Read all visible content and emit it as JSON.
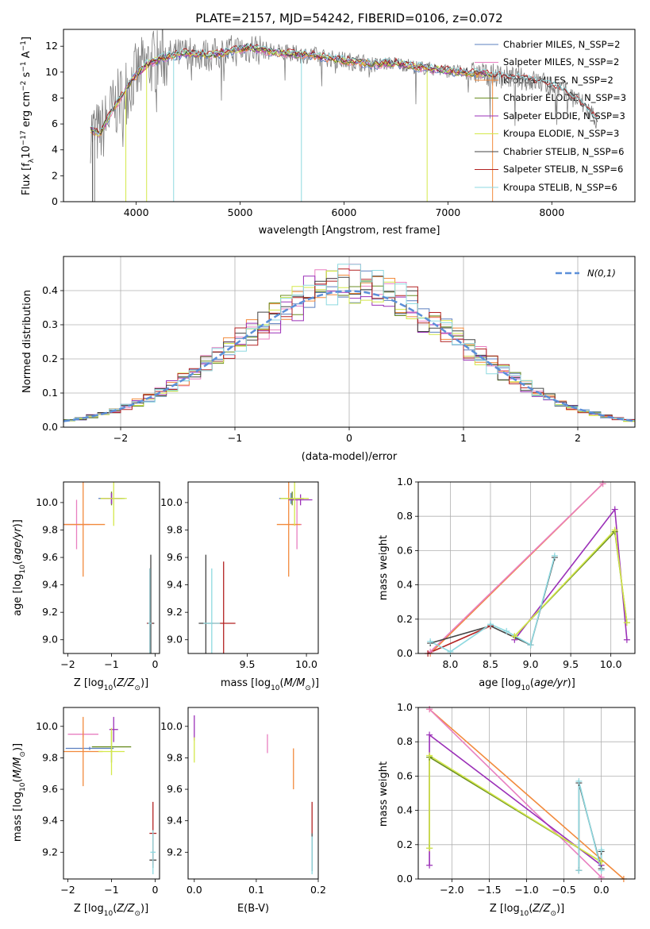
{
  "chart_data": [
    {
      "id": "spectrum",
      "type": "line",
      "title": "PLATE=2157, MJD=54242, FIBERID=0106, z=0.072",
      "xlabel": "wavelength [Angstrom, rest frame]",
      "ylabel": "Flux [f_λ10^-17 erg cm^-2 s^-1 A^-1]",
      "xlim": [
        3300,
        8800
      ],
      "ylim": [
        0,
        13.3
      ],
      "xticks": [
        4000,
        5000,
        6000,
        7000,
        8000
      ],
      "yticks": [
        0,
        2,
        4,
        6,
        8,
        10,
        12
      ],
      "grid": false,
      "legend_position": "upper right",
      "data_continuum": {
        "x": [
          3550,
          3650,
          3750,
          3850,
          3950,
          4100,
          4300,
          4500,
          4700,
          4900,
          5100,
          5300,
          5500,
          5700,
          5900,
          6100,
          6300,
          6500,
          6700,
          6900,
          7100,
          7300,
          7500,
          7700,
          7900,
          8100,
          8300,
          8450
        ],
        "y": [
          5.6,
          5.2,
          6.8,
          8.0,
          9.3,
          10.6,
          11.2,
          11.5,
          11.3,
          11.6,
          11.9,
          11.6,
          11.4,
          11.3,
          11.0,
          10.8,
          10.6,
          10.7,
          10.4,
          10.2,
          10.0,
          9.9,
          9.7,
          9.5,
          9.2,
          8.6,
          7.5,
          6.2
        ]
      },
      "series": [
        {
          "name": "Chabrier MILES, N_SSP=2",
          "color": "#5b7fbf"
        },
        {
          "name": "Salpeter MILES, N_SSP=2",
          "color": "#e87fc0"
        },
        {
          "name": "Kroupa MILES, N_SSP=2",
          "color": "#f28a3c"
        },
        {
          "name": "Chabrier ELODIE, N_SSP=3",
          "color": "#6b8e23"
        },
        {
          "name": "Salpeter ELODIE, N_SSP=3",
          "color": "#9b30b8"
        },
        {
          "name": "Kroupa ELODIE, N_SSP=3",
          "color": "#d4e84a"
        },
        {
          "name": "Chabrier STELIB, N_SSP=6",
          "color": "#444444"
        },
        {
          "name": "Salpeter STELIB, N_SSP=6",
          "color": "#b22222"
        },
        {
          "name": "Kroupa STELIB, N_SSP=6",
          "color": "#8ed9e0"
        }
      ]
    },
    {
      "id": "residuals",
      "type": "line",
      "xlabel": "(data-model)/error",
      "ylabel": "Normed distribution",
      "xlim": [
        -2.5,
        2.5
      ],
      "ylim": [
        0,
        0.5
      ],
      "xticks": [
        -2,
        -1,
        0,
        1,
        2
      ],
      "yticks": [
        0.0,
        0.1,
        0.2,
        0.3,
        0.4
      ],
      "grid": true,
      "legend_position": "upper right",
      "gaussian_label": "N(0,1)",
      "gaussian_color": "#5b8fd9",
      "histogram_bins": [
        -2.5,
        2.5,
        0.1
      ]
    },
    {
      "id": "age-vs-Z",
      "type": "scatter",
      "xlabel": "Z [log10(Z/Z⊙)]",
      "ylabel": "age [log10(age/yr)]",
      "xlim": [
        -2.1,
        0.1
      ],
      "ylim": [
        8.9,
        10.15
      ],
      "xticks": [
        -2,
        -1,
        0
      ],
      "yticks": [
        9.0,
        9.2,
        9.4,
        9.6,
        9.8,
        10.0
      ],
      "points": [
        {
          "c": "#5b7fbf",
          "x": -1.0,
          "y": 10.03,
          "xe": 0.3,
          "ye": 0.04
        },
        {
          "c": "#e87fc0",
          "x": -1.8,
          "y": 9.84,
          "xe": 0.3,
          "ye": 0.18
        },
        {
          "c": "#f28a3c",
          "x": -1.65,
          "y": 9.84,
          "xe": 0.5,
          "ye": 0.38
        },
        {
          "c": "#6b8e23",
          "x": -1.0,
          "y": 10.03,
          "xe": 0.25,
          "ye": 0.05
        },
        {
          "c": "#9b30b8",
          "x": -1.0,
          "y": 10.03,
          "xe": 0.2,
          "ye": 0.04
        },
        {
          "c": "#d4e84a",
          "x": -0.95,
          "y": 10.03,
          "xe": 0.3,
          "ye": 0.2
        },
        {
          "c": "#444444",
          "x": -0.1,
          "y": 9.12,
          "xe": 0.08,
          "ye": 0.5
        },
        {
          "c": "#b22222",
          "x": -0.12,
          "y": 9.12,
          "xe": 0.07,
          "ye": 0.4
        },
        {
          "c": "#8ed9e0",
          "x": -0.12,
          "y": 9.12,
          "xe": 0.05,
          "ye": 0.4
        }
      ]
    },
    {
      "id": "age-vs-mass",
      "type": "scatter",
      "xlabel": "mass [log10(M/M⊙)]",
      "ylabel": "",
      "xlim": [
        9.0,
        10.1
      ],
      "ylim": [
        8.9,
        10.15
      ],
      "xticks": [
        9.5,
        10.0
      ],
      "yticks": [
        9.0,
        9.2,
        9.4,
        9.6,
        9.8,
        10.0
      ],
      "points": [
        {
          "c": "#5b7fbf",
          "x": 9.87,
          "y": 10.03,
          "xe": 0.1,
          "ye": 0.04
        },
        {
          "c": "#e87fc0",
          "x": 9.92,
          "y": 9.84,
          "xe": 0.04,
          "ye": 0.18
        },
        {
          "c": "#f28a3c",
          "x": 9.85,
          "y": 9.84,
          "xe": 0.1,
          "ye": 0.38
        },
        {
          "c": "#6b8e23",
          "x": 9.88,
          "y": 10.03,
          "xe": 0.1,
          "ye": 0.05
        },
        {
          "c": "#9b30b8",
          "x": 9.95,
          "y": 10.02,
          "xe": 0.1,
          "ye": 0.04
        },
        {
          "c": "#d4e84a",
          "x": 9.9,
          "y": 10.03,
          "xe": 0.12,
          "ye": 0.2
        },
        {
          "c": "#444444",
          "x": 9.15,
          "y": 9.12,
          "xe": 0.06,
          "ye": 0.5
        },
        {
          "c": "#b22222",
          "x": 9.3,
          "y": 9.12,
          "xe": 0.1,
          "ye": 0.45
        },
        {
          "c": "#8ed9e0",
          "x": 9.2,
          "y": 9.12,
          "xe": 0.07,
          "ye": 0.4
        }
      ]
    },
    {
      "id": "weight-vs-age",
      "type": "line",
      "xlabel": "age [log10(age/yr)]",
      "ylabel": "mass weight",
      "xlim": [
        7.6,
        10.3
      ],
      "ylim": [
        0,
        1.0
      ],
      "xticks": [
        8.0,
        8.5,
        9.0,
        9.5,
        10.0
      ],
      "yticks": [
        0.0,
        0.2,
        0.4,
        0.6,
        0.8,
        1.0
      ],
      "grid": true,
      "lines": [
        {
          "c": "#f28a3c",
          "x": [
            7.75,
            9.9
          ],
          "y": [
            0.0,
            0.99
          ]
        },
        {
          "c": "#e87fc0",
          "x": [
            7.75,
            9.9
          ],
          "y": [
            0.01,
            0.99
          ]
        },
        {
          "c": "#9b30b8",
          "x": [
            8.8,
            10.05,
            10.2
          ],
          "y": [
            0.08,
            0.84,
            0.08
          ]
        },
        {
          "c": "#6b8e23",
          "x": [
            8.8,
            10.05,
            10.2
          ],
          "y": [
            0.1,
            0.71,
            0.18
          ]
        },
        {
          "c": "#d4e84a",
          "x": [
            8.8,
            10.05,
            10.2
          ],
          "y": [
            0.1,
            0.72,
            0.18
          ]
        },
        {
          "c": "#444444",
          "x": [
            7.75,
            8.5,
            9.0,
            9.3
          ],
          "y": [
            0.06,
            0.16,
            0.05,
            0.56
          ]
        },
        {
          "c": "#b22222",
          "x": [
            7.72,
            8.5
          ],
          "y": [
            0.0,
            0.16
          ]
        },
        {
          "c": "#8ed9e0",
          "x": [
            7.75,
            8.0,
            8.5,
            8.7,
            9.0,
            9.3
          ],
          "y": [
            0.07,
            0.01,
            0.17,
            0.13,
            0.05,
            0.57
          ]
        }
      ]
    },
    {
      "id": "mass-vs-Z",
      "type": "scatter",
      "xlabel": "Z [log10(Z/Z⊙)]",
      "ylabel": "mass [log10(M/M⊙)]",
      "xlim": [
        -2.1,
        0.1
      ],
      "ylim": [
        9.03,
        10.12
      ],
      "xticks": [
        -2,
        -1,
        0
      ],
      "yticks": [
        9.2,
        9.4,
        9.6,
        9.8,
        10.0
      ],
      "points": [
        {
          "c": "#5b7fbf",
          "x": -1.5,
          "y": 9.86,
          "xe": 0.55,
          "ye": 0.01
        },
        {
          "c": "#e87fc0",
          "x": -1.65,
          "y": 9.95,
          "xe": 0.35,
          "ye": 0.02
        },
        {
          "c": "#f28a3c",
          "x": -1.65,
          "y": 9.84,
          "xe": 0.45,
          "ye": 0.22
        },
        {
          "c": "#6b8e23",
          "x": -1.0,
          "y": 9.87,
          "xe": 0.45,
          "ye": 0.1
        },
        {
          "c": "#9b30b8",
          "x": -0.95,
          "y": 9.98,
          "xe": 0.1,
          "ye": 0.08
        },
        {
          "c": "#d4e84a",
          "x": -1.0,
          "y": 9.84,
          "xe": 0.3,
          "ye": 0.15
        },
        {
          "c": "#444444",
          "x": -0.05,
          "y": 9.15,
          "xe": 0.08,
          "ye": 0.05
        },
        {
          "c": "#b22222",
          "x": -0.05,
          "y": 9.32,
          "xe": 0.08,
          "ye": 0.2
        },
        {
          "c": "#8ed9e0",
          "x": -0.05,
          "y": 9.2,
          "xe": 0.06,
          "ye": 0.14
        }
      ]
    },
    {
      "id": "mass-vs-EBV",
      "type": "scatter",
      "xlabel": "E(B-V)",
      "ylabel": "",
      "xlim": [
        -0.01,
        0.2
      ],
      "ylim": [
        9.03,
        10.12
      ],
      "xticks": [
        0.0,
        0.1,
        0.2
      ],
      "yticks": [
        9.2,
        9.4,
        9.6,
        9.8,
        10.0
      ],
      "points": [
        {
          "c": "#9b30b8",
          "x": 0.0,
          "y": 9.99,
          "xe": 0,
          "ye": 0.08
        },
        {
          "c": "#d4e84a",
          "x": 0.0,
          "y": 9.85,
          "xe": 0,
          "ye": 0.08
        },
        {
          "c": "#e87fc0",
          "x": 0.118,
          "y": 9.89,
          "xe": 0,
          "ye": 0.06
        },
        {
          "c": "#f28a3c",
          "x": 0.16,
          "y": 9.73,
          "xe": 0,
          "ye": 0.13
        },
        {
          "c": "#b22222",
          "x": 0.19,
          "y": 9.42,
          "xe": 0,
          "ye": 0.1
        },
        {
          "c": "#444444",
          "x": 0.19,
          "y": 9.2,
          "xe": 0,
          "ye": 0.12
        },
        {
          "c": "#8ed9e0",
          "x": 0.19,
          "y": 9.18,
          "xe": 0,
          "ye": 0.12
        }
      ]
    },
    {
      "id": "weight-vs-Z",
      "type": "line",
      "xlabel": "Z [log10(Z/Z⊙)]",
      "ylabel": "mass weight",
      "xlim": [
        -2.45,
        0.45
      ],
      "ylim": [
        0,
        1.0
      ],
      "xticks": [
        -2.0,
        -1.5,
        -1.0,
        -0.5,
        0.0
      ],
      "yticks": [
        0.0,
        0.2,
        0.4,
        0.6,
        0.8,
        1.0
      ],
      "grid": true,
      "lines": [
        {
          "c": "#f28a3c",
          "x": [
            -2.3,
            0.3
          ],
          "y": [
            0.99,
            0.0
          ]
        },
        {
          "c": "#e87fc0",
          "x": [
            -2.3,
            0.0
          ],
          "y": [
            0.99,
            0.01
          ]
        },
        {
          "c": "#9b30b8",
          "x": [
            -2.3,
            -2.3,
            0.0
          ],
          "y": [
            0.08,
            0.84,
            0.08
          ]
        },
        {
          "c": "#6b8e23",
          "x": [
            -2.3,
            -2.3,
            0.0
          ],
          "y": [
            0.18,
            0.71,
            0.1
          ]
        },
        {
          "c": "#d4e84a",
          "x": [
            -2.3,
            -2.3,
            0.0
          ],
          "y": [
            0.18,
            0.72,
            0.1
          ]
        },
        {
          "c": "#444444",
          "x": [
            -0.3,
            -0.3,
            0.0,
            0.0
          ],
          "y": [
            0.05,
            0.56,
            0.06,
            0.16
          ]
        },
        {
          "c": "#8ed9e0",
          "x": [
            -0.3,
            -0.3,
            0.0,
            0.0
          ],
          "y": [
            0.05,
            0.57,
            0.05,
            0.17
          ]
        }
      ]
    }
  ]
}
